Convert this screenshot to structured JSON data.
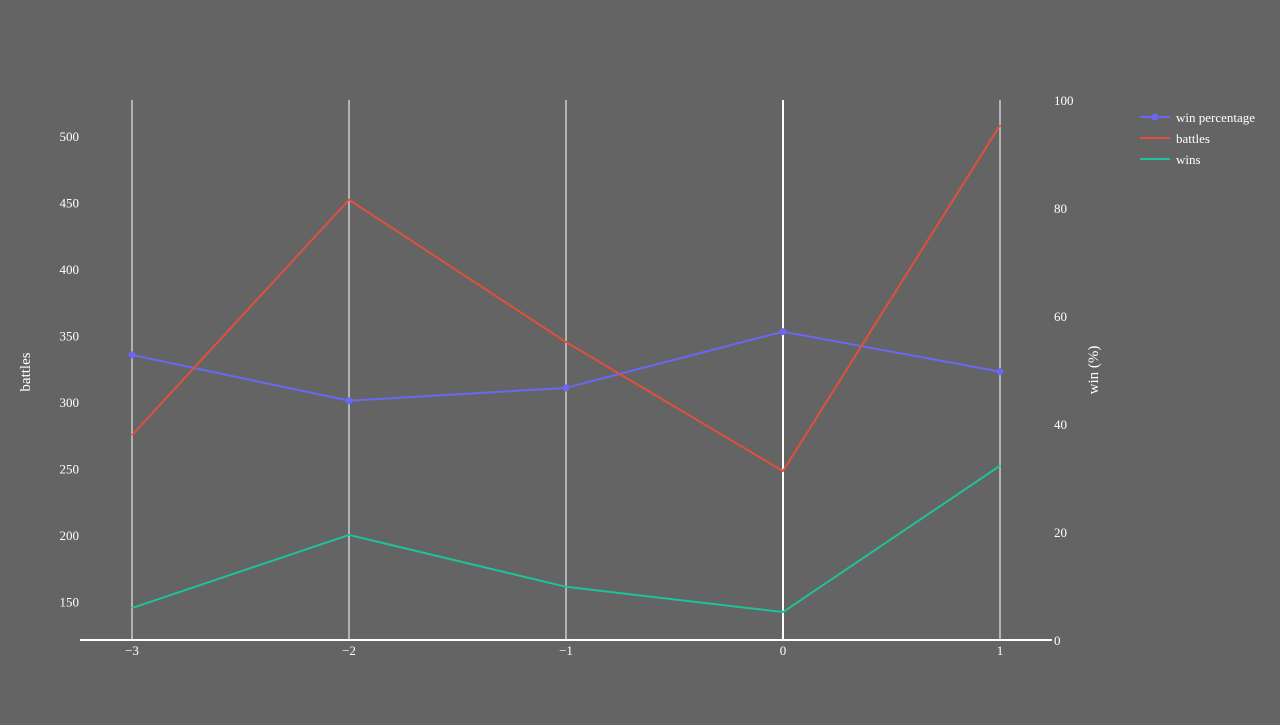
{
  "colors": {
    "background": "#646464",
    "grid": "#ffffff",
    "text": "#ffffff"
  },
  "chart_data": {
    "type": "line",
    "x": [
      -3,
      -2,
      -1,
      0,
      1
    ],
    "x_tick_labels": [
      "−3",
      "−2",
      "−1",
      "0",
      "1"
    ],
    "ylabel": "battles",
    "y2label": "win (%)",
    "ylim": [
      121,
      527
    ],
    "y2lim": [
      0,
      100
    ],
    "y_ticks": [
      150,
      200,
      250,
      300,
      350,
      400,
      450,
      500
    ],
    "y2_ticks": [
      0,
      20,
      40,
      60,
      80,
      100
    ],
    "grid": "vertical",
    "legend_position": "top-right",
    "series": [
      {
        "name": "win percentage",
        "axis": "y2",
        "color": "#6a68f0",
        "markers": true,
        "values": [
          52.8,
          44.3,
          46.7,
          57.1,
          49.7
        ]
      },
      {
        "name": "battles",
        "axis": "y",
        "color": "#e0503c",
        "markers": false,
        "values": [
          275,
          452,
          345,
          248,
          508
        ]
      },
      {
        "name": "wins",
        "axis": "y",
        "color": "#1fc29a",
        "markers": false,
        "values": [
          145,
          200,
          161,
          142,
          252
        ]
      }
    ]
  }
}
